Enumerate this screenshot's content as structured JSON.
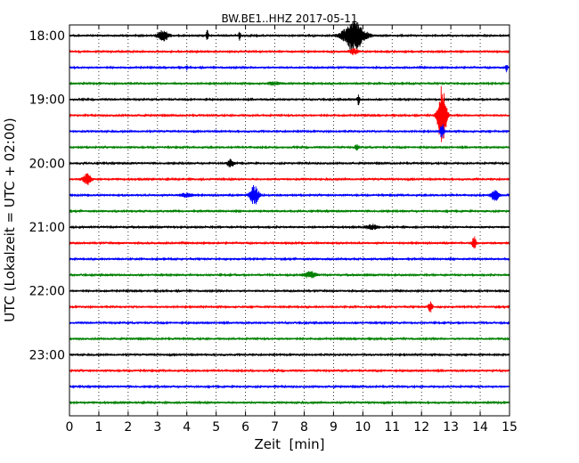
{
  "chart_data": {
    "type": "line",
    "title": "BW.BE1..HHZ 2017-05-11",
    "xlabel": "Zeit  [min]",
    "ylabel": "UTC (Lokalzeit = UTC + 02:00)",
    "xlim": [
      0,
      15
    ],
    "x_ticks": [
      "0",
      "1",
      "2",
      "3",
      "4",
      "5",
      "6",
      "7",
      "8",
      "9",
      "10",
      "11",
      "12",
      "13",
      "14",
      "15"
    ],
    "y_tick_labels": [
      "18:00",
      "19:00",
      "20:00",
      "21:00",
      "22:00",
      "23:00"
    ],
    "grid": "vertical dotted",
    "series_colors": [
      "#000000",
      "#ff0000",
      "#0000ff",
      "#008000"
    ],
    "rows": [
      {
        "start": "18:00",
        "color": "#000000",
        "events": [
          {
            "t": 3.2,
            "a": 0.35,
            "w": 0.25
          },
          {
            "t": 4.7,
            "a": 0.4,
            "w": 0.05
          },
          {
            "t": 5.8,
            "a": 0.3,
            "w": 0.05
          },
          {
            "t": 9.7,
            "a": 1.0,
            "w": 0.5
          }
        ]
      },
      {
        "start": "18:15",
        "color": "#ff0000",
        "events": [
          {
            "t": 9.7,
            "a": 0.2,
            "w": 0.2
          }
        ]
      },
      {
        "start": "18:30",
        "color": "#0000ff",
        "events": [
          {
            "t": 4.0,
            "a": 0.15,
            "w": 0.05
          },
          {
            "t": 14.9,
            "a": 0.25,
            "w": 0.05
          }
        ]
      },
      {
        "start": "18:45",
        "color": "#008000",
        "events": [
          {
            "t": 7.0,
            "a": 0.1,
            "w": 0.3
          }
        ]
      },
      {
        "start": "19:00",
        "color": "#000000",
        "events": [
          {
            "t": 9.85,
            "a": 0.35,
            "w": 0.05
          }
        ]
      },
      {
        "start": "19:15",
        "color": "#ff0000",
        "events": [
          {
            "t": 12.7,
            "a": 2.0,
            "w": 0.2
          }
        ]
      },
      {
        "start": "19:30",
        "color": "#0000ff",
        "events": [
          {
            "t": 12.7,
            "a": 0.5,
            "w": 0.1
          }
        ]
      },
      {
        "start": "19:45",
        "color": "#008000",
        "events": [
          {
            "t": 9.8,
            "a": 0.15,
            "w": 0.1
          }
        ]
      },
      {
        "start": "20:00",
        "color": "#000000",
        "events": [
          {
            "t": 5.5,
            "a": 0.3,
            "w": 0.15
          }
        ]
      },
      {
        "start": "20:15",
        "color": "#ff0000",
        "events": [
          {
            "t": 0.6,
            "a": 0.35,
            "w": 0.2
          }
        ]
      },
      {
        "start": "20:30",
        "color": "#0000ff",
        "events": [
          {
            "t": 6.3,
            "a": 0.65,
            "w": 0.2
          },
          {
            "t": 4.0,
            "a": 0.12,
            "w": 0.3
          },
          {
            "t": 14.5,
            "a": 0.35,
            "w": 0.2
          }
        ]
      },
      {
        "start": "20:45",
        "color": "#008000",
        "events": []
      },
      {
        "start": "21:00",
        "color": "#000000",
        "events": [
          {
            "t": 10.3,
            "a": 0.15,
            "w": 0.3
          }
        ]
      },
      {
        "start": "21:15",
        "color": "#ff0000",
        "events": [
          {
            "t": 13.8,
            "a": 0.4,
            "w": 0.1
          }
        ]
      },
      {
        "start": "21:30",
        "color": "#0000ff",
        "events": []
      },
      {
        "start": "21:45",
        "color": "#008000",
        "events": [
          {
            "t": 8.2,
            "a": 0.2,
            "w": 0.3
          }
        ]
      },
      {
        "start": "22:00",
        "color": "#000000",
        "events": []
      },
      {
        "start": "22:15",
        "color": "#ff0000",
        "events": [
          {
            "t": 12.3,
            "a": 0.35,
            "w": 0.1
          }
        ]
      },
      {
        "start": "22:30",
        "color": "#0000ff",
        "events": []
      },
      {
        "start": "22:45",
        "color": "#008000",
        "events": []
      },
      {
        "start": "23:00",
        "color": "#000000",
        "events": []
      },
      {
        "start": "23:15",
        "color": "#ff0000",
        "events": []
      },
      {
        "start": "23:30",
        "color": "#0000ff",
        "events": []
      },
      {
        "start": "23:45",
        "color": "#008000",
        "events": []
      }
    ]
  }
}
